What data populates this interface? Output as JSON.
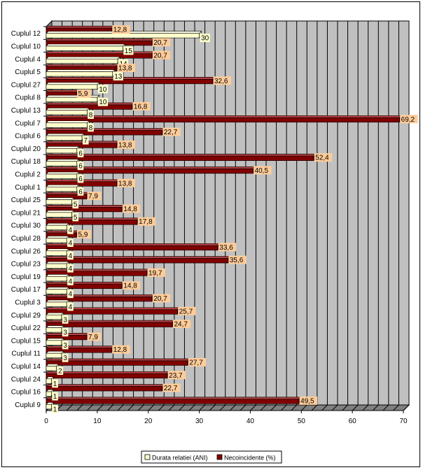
{
  "chart_data": {
    "type": "bar",
    "orientation": "horizontal",
    "categories": [
      "Cuplul 12",
      "Cuplul 10",
      "Cuplul 4",
      "Cuplul 5",
      "Cuplul 27",
      "Cuplul 8",
      "Cuplul 13",
      "Cuplul 7",
      "Cuplul 6",
      "Cuplul 20",
      "Cuplul 18",
      "Cuplul 2",
      "Cuplul 1",
      "Cuplul 25",
      "Cuplul 21",
      "Cuplul 30",
      "Cuplul 28",
      "Cuplul 26",
      "Cuplul 23",
      "Cuplul 19",
      "Cuplul 17",
      "Cuplul 3",
      "Cuplul 29",
      "Cuplul 22",
      "Cuplul 15",
      "Cuplul 11",
      "Cuplul 14",
      "Cuplul 24",
      "Cuplul 16",
      "Cuplul 9"
    ],
    "series": [
      {
        "name": "Durata relatiei (ANI)",
        "color": "#FFFFCC",
        "values": [
          30,
          15,
          14,
          13,
          10,
          10,
          8,
          8,
          7,
          6,
          6,
          6,
          6,
          5,
          5,
          4,
          4,
          4,
          4,
          4,
          4,
          4,
          3,
          3,
          3,
          3,
          2,
          1,
          1,
          1
        ],
        "labels": [
          "30",
          "15",
          "14",
          "13",
          "10",
          "10",
          "8",
          "8",
          "7",
          "6",
          "6",
          "6",
          "6",
          "5",
          "5",
          "4",
          "4",
          "4",
          "4",
          "4",
          "4",
          "4",
          "3",
          "3",
          "3",
          "3",
          "2",
          "1",
          "1",
          "1"
        ]
      },
      {
        "name": "Necoincidente (%)",
        "color": "#800000",
        "values": [
          12.8,
          20.7,
          20.7,
          13.8,
          32.6,
          5.9,
          16.8,
          69.2,
          22.7,
          13.8,
          52.4,
          40.5,
          13.8,
          7.9,
          14.8,
          17.8,
          5.9,
          33.6,
          35.6,
          19.7,
          14.8,
          20.7,
          25.7,
          24.7,
          7.9,
          12.8,
          27.7,
          23.7,
          22.7,
          49.5
        ],
        "labels": [
          "12,8",
          "20,7",
          "20,7",
          "13,8",
          "32,6",
          "5,9",
          "16,8",
          "69,2",
          "22,7",
          "13,8",
          "52,4",
          "40,5",
          "13,8",
          "7,9",
          "14,8",
          "17,8",
          "5,9",
          "33,6",
          "35,6",
          "19,7",
          "14,8",
          "20,7",
          "25,7",
          "24,7",
          "7,9",
          "12,8",
          "27,7",
          "23,7",
          "22,7",
          "49,5"
        ]
      }
    ],
    "x_ticks": [
      "0",
      "10",
      "20",
      "30",
      "40",
      "50",
      "60",
      "70"
    ],
    "xlim": [
      0,
      70
    ],
    "grid": true,
    "gridlines_every": 2,
    "plot_background": "#C0C0C0",
    "data_label_background": "#FFCC99",
    "legend_position": "bottom"
  }
}
